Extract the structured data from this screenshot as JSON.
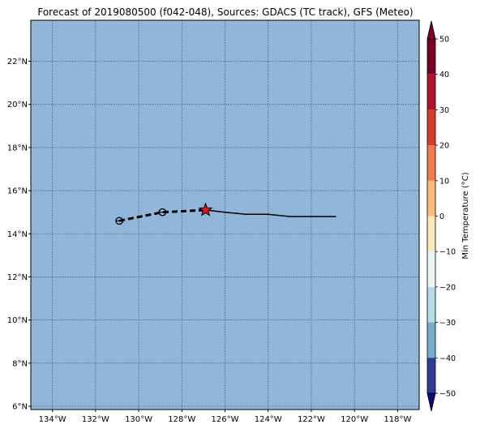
{
  "title": "Forecast of 2019080500 (f042-048), Sources: GDACS (TC track), GFS (Meteo)",
  "map": {
    "lon_range": [
      -135,
      -117
    ],
    "lat_range": [
      5.85,
      23.9
    ],
    "ocean_color": "#92b6d9",
    "grid": true,
    "lat_ticks": [
      {
        "value": 6,
        "label": "6°N"
      },
      {
        "value": 8,
        "label": "8°N"
      },
      {
        "value": 10,
        "label": "10°N"
      },
      {
        "value": 12,
        "label": "12°N"
      },
      {
        "value": 14,
        "label": "14°N"
      },
      {
        "value": 16,
        "label": "16°N"
      },
      {
        "value": 18,
        "label": "18°N"
      },
      {
        "value": 20,
        "label": "20°N"
      },
      {
        "value": 22,
        "label": "22°N"
      }
    ],
    "lon_ticks": [
      {
        "value": -134,
        "label": "134°W"
      },
      {
        "value": -132,
        "label": "132°W"
      },
      {
        "value": -130,
        "label": "130°W"
      },
      {
        "value": -128,
        "label": "128°W"
      },
      {
        "value": -126,
        "label": "126°W"
      },
      {
        "value": -124,
        "label": "124°W"
      },
      {
        "value": -122,
        "label": "122°W"
      },
      {
        "value": -120,
        "label": "120°W"
      },
      {
        "value": -118,
        "label": "118°W"
      }
    ]
  },
  "track": {
    "past": [
      [
        -126.9,
        15.1
      ],
      [
        -126.0,
        15.0
      ],
      [
        -125.0,
        14.9
      ],
      [
        -124.0,
        14.9
      ],
      [
        -123.0,
        14.8
      ],
      [
        -122.0,
        14.8
      ],
      [
        -121.0,
        14.8
      ],
      [
        -120.85,
        14.8
      ]
    ],
    "forecast": [
      [
        -130.9,
        14.6
      ],
      [
        -128.9,
        15.0
      ],
      [
        -126.9,
        15.1
      ]
    ],
    "forecast_points": [
      [
        -130.9,
        14.6
      ],
      [
        -128.9,
        15.0
      ]
    ],
    "current_position": [
      -126.9,
      15.1
    ],
    "current_marker_color": "#e8161c"
  },
  "colorbar": {
    "label": "Min Temperature (°C)",
    "ticks": [
      "50",
      "40",
      "30",
      "20",
      "10",
      "0",
      "−10",
      "−20",
      "−30",
      "−40",
      "−50"
    ],
    "colors_top_to_bottom": [
      "#7a0024",
      "#b5112a",
      "#d93c2a",
      "#f07b4d",
      "#f9bd7c",
      "#fde9b8",
      "#eaf6f6",
      "#b4dde8",
      "#74acd0",
      "#3d72b1",
      "#2f3b98"
    ],
    "extend_top_color": "#7a0024",
    "extend_bottom_color": "#0a0a80"
  }
}
